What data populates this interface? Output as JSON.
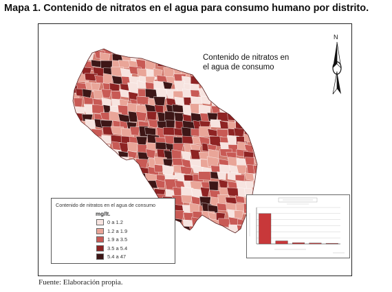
{
  "title": "Mapa 1. Contenido de nitratos en el agua para consumo humano por distrito.",
  "map": {
    "label_line1": "Contenido de nitratos en",
    "label_line2": "el agua de consumo",
    "north_letter": "N",
    "colors": [
      "#f7e4e0",
      "#e9a598",
      "#c85a55",
      "#8e2323",
      "#3d1616"
    ]
  },
  "legend": {
    "title": "Contenido de nitratos en el agua de consumo",
    "unit": "mg/lt.",
    "items": [
      {
        "from": "0",
        "sep": "a",
        "to": "1.2",
        "color": "#f7e4e0"
      },
      {
        "from": "1.2",
        "sep": "a",
        "to": "1.9",
        "color": "#e9a598"
      },
      {
        "from": "1.9",
        "sep": "a",
        "to": "3.5",
        "color": "#c85a55"
      },
      {
        "from": "3.5",
        "sep": "a",
        "to": "5.4",
        "color": "#8e2323"
      },
      {
        "from": "5.4",
        "sep": "a",
        "to": "47",
        "color": "#3d1616"
      }
    ]
  },
  "chart_data": {
    "type": "bar",
    "values": [
      100,
      10,
      4,
      3,
      2
    ],
    "ylim": [
      0,
      120
    ],
    "bar_color": "#c8383a"
  },
  "source": "Fuente: Elaboración propia."
}
